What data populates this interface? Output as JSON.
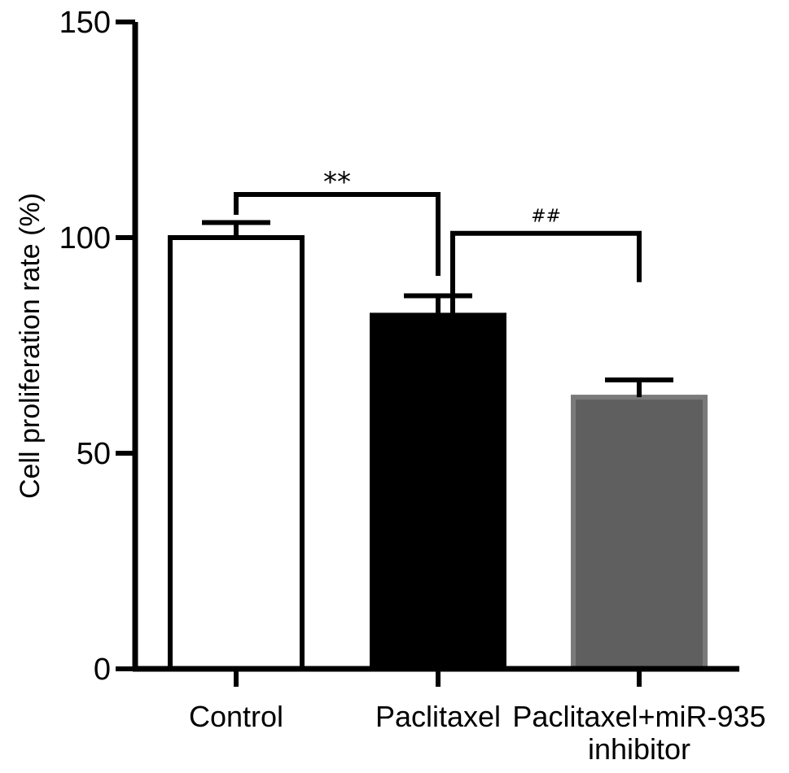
{
  "chart_data": {
    "type": "bar",
    "categories": [
      "Control",
      "Paclitaxel",
      "Paclitaxel+miR-935 inhibitor"
    ],
    "category_lines": [
      [
        "Control"
      ],
      [
        "Paclitaxel"
      ],
      [
        "Paclitaxel+miR-935",
        "inhibitor"
      ]
    ],
    "values": [
      100,
      82,
      63
    ],
    "errors": [
      3.5,
      4.5,
      4.0
    ],
    "bar_colors": [
      "#ffffff",
      "#000000",
      "#5f5f5f"
    ],
    "ylabel": "Cell proliferation rate (%)",
    "xlabel": "",
    "ylim": [
      0,
      150
    ],
    "yticks": [
      0,
      50,
      100,
      150
    ],
    "grid": false,
    "significance": [
      {
        "label": "**",
        "from": 0,
        "to": 1,
        "level": 110
      },
      {
        "label": "##",
        "from": 1,
        "to": 2,
        "level": 101
      }
    ]
  }
}
